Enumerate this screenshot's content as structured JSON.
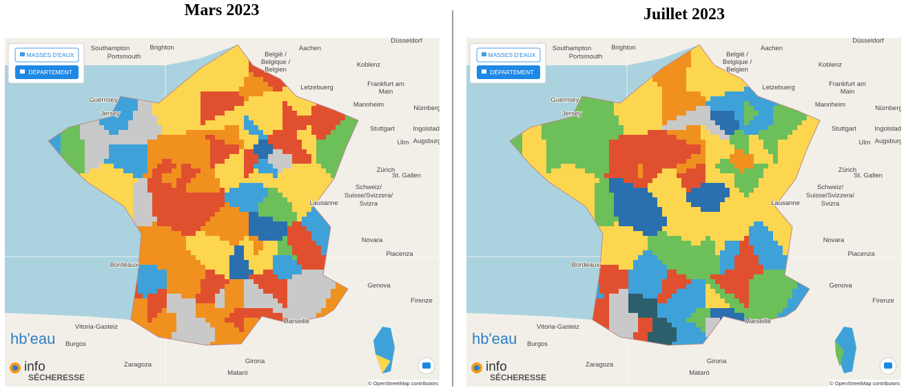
{
  "panels": [
    {
      "title": "Mars 2023",
      "buttons": [
        "MASSES D'EAUX",
        "DÉPARTEMENT"
      ],
      "logo": "hb'eau",
      "logo_info": "info",
      "logo_sub": "SÉCHERESSE",
      "attribution": "© OpenStreetMap contributors",
      "cities": [
        "Southampton",
        "Brighton",
        "Portsmouth",
        "Düsseldorf",
        "Aachen",
        "België /",
        "Belgique /",
        "Belgien",
        "Koblenz",
        "Letzebuerg",
        "Frankfurt am",
        "Main",
        "Mannheim",
        "Nürnberg",
        "Guernsey",
        "Jersey",
        "Stuttgart",
        "Ingolstadt",
        "Ulm",
        "Augsburg",
        "Zürich",
        "St. Gallen",
        "Schweiz/",
        "Suisse/Svizzera/",
        "Svizra",
        "Lausanne",
        "Bordeaux",
        "Novara",
        "Piacenza",
        "Genova",
        "Firenze",
        "Marseille",
        "Vitoria-Gasteiz",
        "Burgos",
        "Zaragoza",
        "Girona",
        "Mataró"
      ]
    },
    {
      "title": "Juillet 2023",
      "buttons": [
        "MASSES D'EAUX",
        "DÉPARTEMENT"
      ],
      "logo": "hb'eau",
      "logo_info": "info",
      "logo_sub": "SÉCHERESSE",
      "attribution": "© OpenStreetMap contributors",
      "cities": [
        "Southampton",
        "Brighton",
        "Portsmouth",
        "Düsseldorf",
        "Aachen",
        "België /",
        "Belgique /",
        "Belgien",
        "Koblenz",
        "Letzebuerg",
        "Frankfurt am",
        "Main",
        "Mannheim",
        "Nürnberg",
        "Guernsey",
        "Jersey",
        "Stuttgart",
        "Ingolstadt",
        "Ulm",
        "Augsburg",
        "Zürich",
        "St. Gallen",
        "Schweiz/",
        "Suisse/Svizzera/",
        "Svizra",
        "Lausanne",
        "Bordeaux",
        "Novara",
        "Piacenza",
        "Genova",
        "Firenze",
        "Marseille",
        "Vitoria-Gasteiz",
        "Burgos",
        "Zaragoza",
        "Girona",
        "Mataró"
      ]
    }
  ]
}
